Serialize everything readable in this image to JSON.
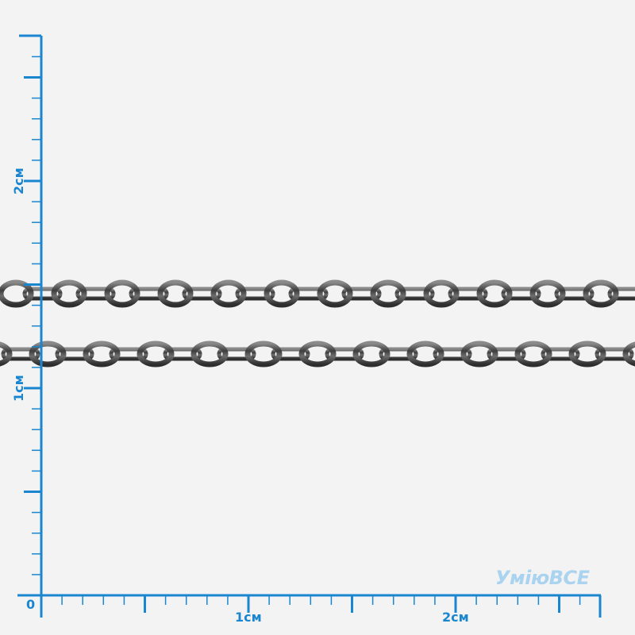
{
  "ruler": {
    "color": "#1a86cf",
    "unit": "cm",
    "zero_label": "0",
    "x_labels": [
      "1см",
      "2см"
    ],
    "y_labels": [
      "1см",
      "2см"
    ],
    "x_extent_cm": 2.7,
    "y_extent_cm": 2.7,
    "minor_ticks_per_cm": 10
  },
  "watermark": "УміюВСЕ",
  "chain": {
    "rows": 2,
    "metal_color": "#5c5c5c"
  }
}
